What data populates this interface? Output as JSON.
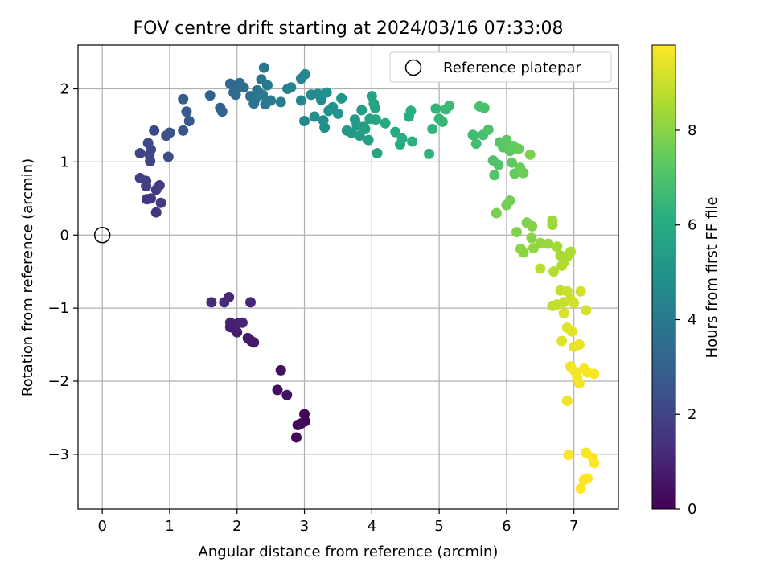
{
  "chart_data": {
    "type": "scatter",
    "title": "FOV centre drift starting at 2024/03/16 07:33:08",
    "xlabel": "Angular distance from reference (arcmin)",
    "ylabel": "Rotation from reference (arcmin)",
    "xlim": [
      -0.36,
      7.66
    ],
    "ylim": [
      -3.75,
      2.6
    ],
    "xticks": [
      0,
      1,
      2,
      3,
      4,
      5,
      6,
      7
    ],
    "yticks": [
      -3,
      -2,
      -1,
      0,
      1,
      2
    ],
    "grid": true,
    "legend": {
      "position": "top-right",
      "entries": [
        "Reference platepar"
      ]
    },
    "reference_point": {
      "label": "Reference platepar",
      "x": 0,
      "y": 0
    },
    "colorbar": {
      "label": "Hours from first FF file",
      "colormap": "viridis",
      "range": [
        0,
        9.8
      ],
      "ticks": [
        0,
        2,
        4,
        6,
        8
      ]
    },
    "points": [
      [
        3.0,
        -2.45,
        0.05
      ],
      [
        3.01,
        -2.55,
        0.1
      ],
      [
        2.95,
        -2.58,
        0.15
      ],
      [
        2.9,
        -2.6,
        0.2
      ],
      [
        2.88,
        -2.77,
        0.25
      ],
      [
        2.65,
        -1.85,
        0.35
      ],
      [
        2.6,
        -2.12,
        0.4
      ],
      [
        2.74,
        -2.19,
        0.45
      ],
      [
        2.25,
        -1.47,
        0.6
      ],
      [
        2.21,
        -1.45,
        0.65
      ],
      [
        2.16,
        -1.41,
        0.7
      ],
      [
        2.0,
        -1.33,
        0.75
      ],
      [
        1.96,
        -1.28,
        0.8
      ],
      [
        1.9,
        -1.26,
        0.85
      ],
      [
        1.9,
        -1.2,
        0.9
      ],
      [
        2.01,
        -1.21,
        0.95
      ],
      [
        2.08,
        -1.2,
        1.0
      ],
      [
        2.2,
        -0.92,
        1.05
      ],
      [
        1.88,
        -0.85,
        1.1
      ],
      [
        1.81,
        -0.92,
        1.15
      ],
      [
        1.62,
        -0.92,
        1.2
      ],
      [
        0.8,
        0.31,
        1.5
      ],
      [
        0.72,
        0.5,
        1.55
      ],
      [
        0.66,
        0.49,
        1.6
      ],
      [
        0.87,
        0.44,
        1.65
      ],
      [
        0.8,
        0.62,
        1.7
      ],
      [
        0.85,
        0.68,
        1.75
      ],
      [
        0.65,
        0.67,
        1.8
      ],
      [
        0.56,
        0.78,
        1.85
      ],
      [
        0.65,
        0.74,
        1.9
      ],
      [
        0.56,
        1.12,
        1.95
      ],
      [
        0.71,
        1.01,
        2.0
      ],
      [
        0.7,
        1.1,
        2.05
      ],
      [
        0.72,
        1.17,
        2.1
      ],
      [
        0.68,
        1.26,
        2.15
      ],
      [
        0.77,
        1.43,
        2.2
      ],
      [
        0.98,
        1.07,
        2.3
      ],
      [
        0.95,
        1.36,
        2.4
      ],
      [
        1.0,
        1.4,
        2.5
      ],
      [
        1.2,
        1.43,
        2.6
      ],
      [
        1.29,
        1.56,
        2.7
      ],
      [
        1.25,
        1.69,
        2.8
      ],
      [
        1.2,
        1.86,
        2.9
      ],
      [
        1.6,
        1.91,
        3.0
      ],
      [
        1.75,
        1.74,
        3.1
      ],
      [
        1.78,
        1.69,
        3.15
      ],
      [
        1.9,
        2.07,
        3.3
      ],
      [
        1.95,
        1.95,
        3.35
      ],
      [
        2.0,
        2.0,
        3.4
      ],
      [
        1.98,
        1.92,
        3.45
      ],
      [
        2.04,
        2.08,
        3.5
      ],
      [
        2.1,
        2.02,
        3.55
      ],
      [
        2.2,
        1.9,
        3.6
      ],
      [
        2.25,
        1.8,
        3.65
      ],
      [
        2.27,
        1.86,
        3.7
      ],
      [
        2.3,
        1.98,
        3.75
      ],
      [
        2.36,
        2.13,
        3.8
      ],
      [
        2.4,
        2.29,
        3.85
      ],
      [
        2.42,
        1.79,
        3.9
      ],
      [
        2.38,
        1.92,
        3.95
      ],
      [
        2.45,
        2.05,
        4.0
      ],
      [
        2.5,
        1.84,
        4.05
      ],
      [
        2.65,
        1.82,
        4.15
      ],
      [
        2.75,
        2.0,
        4.25
      ],
      [
        2.8,
        2.02,
        4.3
      ],
      [
        2.95,
        2.14,
        4.4
      ],
      [
        3.01,
        2.2,
        4.45
      ],
      [
        2.95,
        1.84,
        4.5
      ],
      [
        3.1,
        1.92,
        4.55
      ],
      [
        3.0,
        1.56,
        4.6
      ],
      [
        3.2,
        1.93,
        4.65
      ],
      [
        3.15,
        1.62,
        4.7
      ],
      [
        3.25,
        1.85,
        4.75
      ],
      [
        3.3,
        1.47,
        4.8
      ],
      [
        3.28,
        1.57,
        4.85
      ],
      [
        3.36,
        1.7,
        4.9
      ],
      [
        3.33,
        1.95,
        4.95
      ],
      [
        3.42,
        1.75,
        5.0
      ],
      [
        3.5,
        1.66,
        5.05
      ],
      [
        3.55,
        1.87,
        5.1
      ],
      [
        3.63,
        1.43,
        5.15
      ],
      [
        3.7,
        1.4,
        5.2
      ],
      [
        3.75,
        1.58,
        5.25
      ],
      [
        3.78,
        1.5,
        5.3
      ],
      [
        3.82,
        1.36,
        5.35
      ],
      [
        3.85,
        1.71,
        5.4
      ],
      [
        3.88,
        1.48,
        5.45
      ],
      [
        3.9,
        1.45,
        5.5
      ],
      [
        3.95,
        1.3,
        5.55
      ],
      [
        3.97,
        1.59,
        5.6
      ],
      [
        4.0,
        1.9,
        5.65
      ],
      [
        4.03,
        1.8,
        5.7
      ],
      [
        4.05,
        1.74,
        5.75
      ],
      [
        4.08,
        1.12,
        5.8
      ],
      [
        4.06,
        1.58,
        5.85
      ],
      [
        4.2,
        1.53,
        5.9
      ],
      [
        4.35,
        1.41,
        5.95
      ],
      [
        4.42,
        1.24,
        6.0
      ],
      [
        4.45,
        1.32,
        6.05
      ],
      [
        4.55,
        1.62,
        6.1
      ],
      [
        4.58,
        1.7,
        6.15
      ],
      [
        4.6,
        1.28,
        6.2
      ],
      [
        4.85,
        1.11,
        6.3
      ],
      [
        4.9,
        1.45,
        6.35
      ],
      [
        4.95,
        1.73,
        6.4
      ],
      [
        5.0,
        1.59,
        6.45
      ],
      [
        5.05,
        1.55,
        6.5
      ],
      [
        5.1,
        1.72,
        6.55
      ],
      [
        5.15,
        1.77,
        6.6
      ],
      [
        5.5,
        1.37,
        6.7
      ],
      [
        5.55,
        1.25,
        6.75
      ],
      [
        5.65,
        1.37,
        6.8
      ],
      [
        5.6,
        1.76,
        6.85
      ],
      [
        5.67,
        1.74,
        6.9
      ],
      [
        5.73,
        1.44,
        6.95
      ],
      [
        5.8,
        1.02,
        7.0
      ],
      [
        5.88,
        0.96,
        7.05
      ],
      [
        5.82,
        0.82,
        7.1
      ],
      [
        5.9,
        1.27,
        7.15
      ],
      [
        5.95,
        1.2,
        7.2
      ],
      [
        6.0,
        1.3,
        7.25
      ],
      [
        6.05,
        1.15,
        7.3
      ],
      [
        6.08,
        0.99,
        7.35
      ],
      [
        6.1,
        1.22,
        7.4
      ],
      [
        6.12,
        0.84,
        7.45
      ],
      [
        6.18,
        1.18,
        7.5
      ],
      [
        6.2,
        0.92,
        7.55
      ],
      [
        6.25,
        0.85,
        7.6
      ],
      [
        6.05,
        0.47,
        7.65
      ],
      [
        6.0,
        0.41,
        7.7
      ],
      [
        5.85,
        0.3,
        7.75
      ],
      [
        6.35,
        1.1,
        7.8
      ],
      [
        6.3,
        0.17,
        7.85
      ],
      [
        6.15,
        0.04,
        7.9
      ],
      [
        6.38,
        0.12,
        7.95
      ],
      [
        6.37,
        -0.04,
        8.0
      ],
      [
        6.21,
        -0.19,
        8.05
      ],
      [
        6.25,
        -0.24,
        8.1
      ],
      [
        6.4,
        -0.18,
        8.15
      ],
      [
        6.5,
        -0.11,
        8.2
      ],
      [
        6.62,
        -0.12,
        8.25
      ],
      [
        6.68,
        0.14,
        8.3
      ],
      [
        6.68,
        0.2,
        8.35
      ],
      [
        6.75,
        -0.16,
        8.4
      ],
      [
        6.8,
        -0.28,
        8.45
      ],
      [
        6.85,
        -0.37,
        8.5
      ],
      [
        6.9,
        -0.3,
        8.55
      ],
      [
        6.95,
        -0.23,
        8.6
      ],
      [
        6.82,
        -0.42,
        8.65
      ],
      [
        6.7,
        -0.5,
        8.7
      ],
      [
        6.5,
        -0.46,
        8.75
      ],
      [
        6.68,
        -0.97,
        8.8
      ],
      [
        6.75,
        -0.95,
        8.85
      ],
      [
        6.8,
        -0.76,
        8.9
      ],
      [
        6.85,
        -0.92,
        8.95
      ],
      [
        6.9,
        -0.77,
        9.0
      ],
      [
        6.95,
        -0.88,
        9.05
      ],
      [
        7.0,
        -0.93,
        9.1
      ],
      [
        7.1,
        -0.77,
        9.15
      ],
      [
        7.18,
        -1.03,
        9.2
      ],
      [
        6.85,
        -1.07,
        9.25
      ],
      [
        6.82,
        -1.45,
        9.3
      ],
      [
        6.9,
        -1.27,
        9.35
      ],
      [
        6.97,
        -1.32,
        9.4
      ],
      [
        7.0,
        -1.53,
        9.45
      ],
      [
        7.08,
        -1.5,
        9.5
      ],
      [
        6.9,
        -2.27,
        9.55
      ],
      [
        6.95,
        -1.8,
        9.6
      ],
      [
        7.02,
        -1.87,
        9.62
      ],
      [
        7.05,
        -1.95,
        9.64
      ],
      [
        7.08,
        -2.03,
        9.66
      ],
      [
        7.15,
        -1.83,
        9.68
      ],
      [
        7.2,
        -1.88,
        9.7
      ],
      [
        7.3,
        -1.9,
        9.72
      ],
      [
        6.92,
        -3.01,
        9.74
      ],
      [
        7.18,
        -2.98,
        9.76
      ],
      [
        7.28,
        -3.05,
        9.78
      ],
      [
        7.3,
        -3.12,
        9.8
      ],
      [
        7.15,
        -3.35,
        9.8
      ],
      [
        7.2,
        -3.33,
        9.8
      ],
      [
        7.1,
        -3.47,
        9.8
      ]
    ]
  }
}
